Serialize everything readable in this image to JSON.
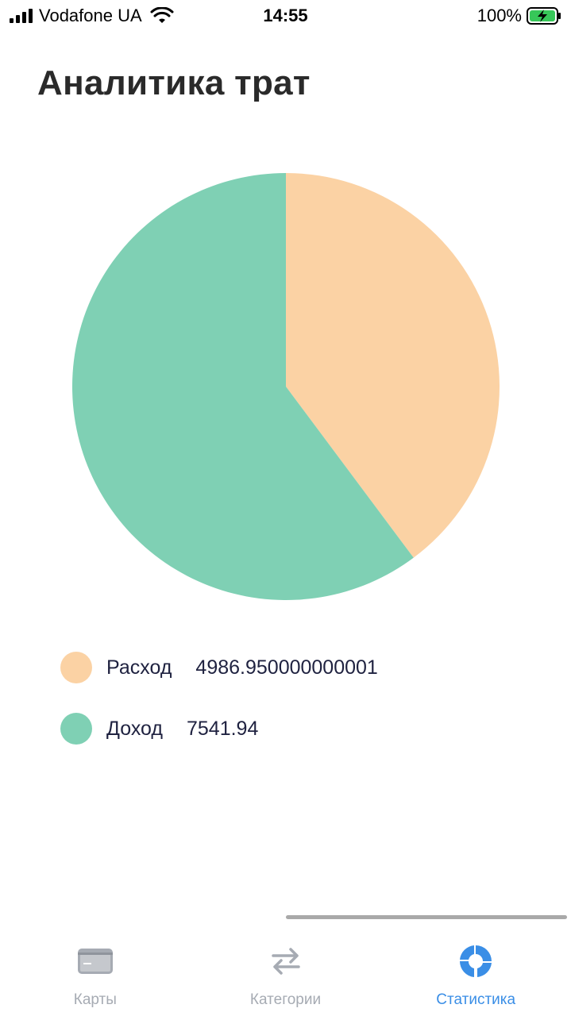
{
  "status_bar": {
    "carrier": "Vodafone UA",
    "time": "14:55",
    "battery": "100%"
  },
  "title": "Аналитика трат",
  "chart_data": {
    "type": "pie",
    "series": [
      {
        "name": "Расход",
        "value": 4986.950000000001,
        "color": "#FBD2A4"
      },
      {
        "name": "Доход",
        "value": 7541.94,
        "color": "#7FD0B4"
      }
    ],
    "legend_placement": "bottom"
  },
  "legend": [
    {
      "label": "Расход",
      "value": "4986.950000000001",
      "color": "#FBD2A4"
    },
    {
      "label": "Доход",
      "value": "7541.94",
      "color": "#7FD0B4"
    }
  ],
  "tabs": [
    {
      "label": "Карты",
      "icon": "card-icon",
      "active": false
    },
    {
      "label": "Категории",
      "icon": "swap-arrows-icon",
      "active": false
    },
    {
      "label": "Статистика",
      "icon": "donut-chart-icon",
      "active": true
    }
  ],
  "colors": {
    "accent": "#3a8ee6",
    "inactive": "#a6abb3"
  }
}
